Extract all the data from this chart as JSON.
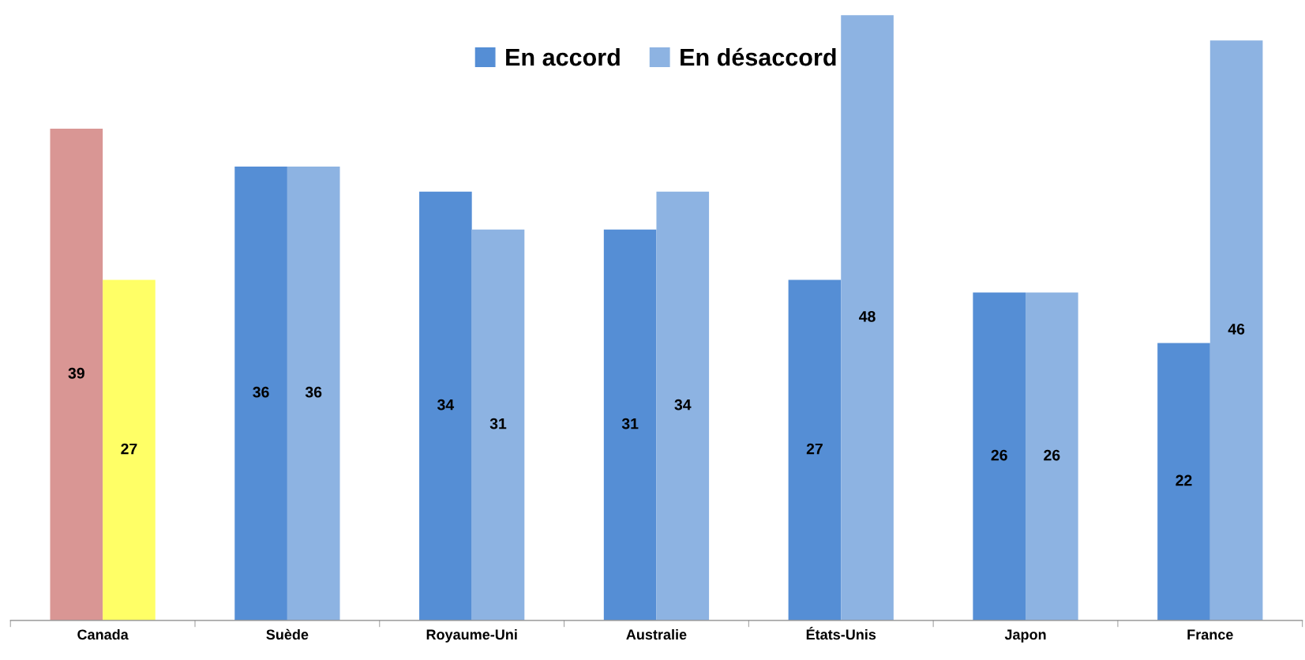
{
  "chart_data": {
    "type": "bar",
    "categories": [
      "Canada",
      "Suède",
      "Royaume-Uni",
      "Australie",
      "États-Unis",
      "Japon",
      "France"
    ],
    "series": [
      {
        "name": "En accord",
        "color": "#558ed5",
        "colors": [
          "#d99694",
          "#558ed5",
          "#558ed5",
          "#558ed5",
          "#558ed5",
          "#558ed5",
          "#558ed5"
        ],
        "values": [
          39,
          36,
          34,
          31,
          27,
          26,
          22
        ]
      },
      {
        "name": "En désaccord",
        "color": "#8db3e2",
        "colors": [
          "#ffff66",
          "#8db3e2",
          "#8db3e2",
          "#8db3e2",
          "#8db3e2",
          "#8db3e2",
          "#8db3e2"
        ],
        "values": [
          27,
          36,
          31,
          34,
          48,
          26,
          46
        ]
      }
    ],
    "data_labels": true,
    "grid": false,
    "legend": "top"
  }
}
